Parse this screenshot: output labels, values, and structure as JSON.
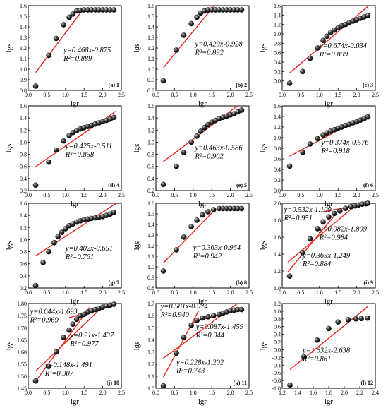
{
  "chart_data": [
    {
      "id": "a",
      "type": "scatter",
      "panel_label": "(a) 1",
      "xlabel": "lgr",
      "ylabel": "lgs",
      "xlim": [
        0,
        2.5
      ],
      "ylim": [
        0.8,
        1.6
      ],
      "xticks": [
        0.0,
        0.5,
        1.0,
        1.5,
        2.0,
        2.5
      ],
      "xtick_labels": [
        "0.0",
        "0.5",
        "1.0",
        "1.5",
        "2.0",
        "2.5"
      ],
      "yticks": [
        0.8,
        0.9,
        1.0,
        1.1,
        1.2,
        1.3,
        1.4,
        1.5,
        1.6
      ],
      "ytick_labels": [
        "0.8",
        "0.9",
        "1.0",
        "1.1",
        "1.2",
        "1.3",
        "1.4",
        "1.5",
        "1.6"
      ],
      "x": [
        0.2,
        0.55,
        0.75,
        0.95,
        1.1,
        1.2,
        1.3,
        1.4,
        1.5,
        1.6,
        1.7,
        1.8,
        1.9,
        2.0,
        2.1,
        2.2,
        2.3
      ],
      "y": [
        0.84,
        1.13,
        1.29,
        1.42,
        1.49,
        1.52,
        1.55,
        1.555,
        1.56,
        1.56,
        1.56,
        1.56,
        1.56,
        1.56,
        1.56,
        1.56,
        1.56
      ],
      "fits": [
        {
          "slope": 0.468,
          "intercept": -0.875,
          "xrange": [
            0.2,
            1.45
          ],
          "equation": "y=0.468x-0.875",
          "r2": "R²=0.889"
        }
      ]
    },
    {
      "id": "b",
      "type": "scatter",
      "panel_label": "(b) 2",
      "xlabel": "lgr",
      "ylabel": "lgs",
      "xlim": [
        0,
        2.5
      ],
      "ylim": [
        0.8,
        1.6
      ],
      "xticks": [
        0.0,
        0.5,
        1.0,
        1.5,
        2.0,
        2.5
      ],
      "xtick_labels": [
        "0.0",
        "0.5",
        "1.0",
        "1.5",
        "2.0",
        "2.5"
      ],
      "yticks": [
        0.8,
        0.9,
        1.0,
        1.1,
        1.2,
        1.3,
        1.4,
        1.5,
        1.6
      ],
      "ytick_labels": [
        "0.8",
        "0.9",
        "1.0",
        "1.1",
        "1.2",
        "1.3",
        "1.4",
        "1.5",
        "1.6"
      ],
      "x": [
        0.2,
        0.55,
        0.75,
        0.95,
        1.1,
        1.2,
        1.3,
        1.4,
        1.5,
        1.6,
        1.7,
        1.8,
        1.9,
        2.0,
        2.1,
        2.2,
        2.3
      ],
      "y": [
        0.89,
        1.18,
        1.32,
        1.43,
        1.49,
        1.53,
        1.55,
        1.56,
        1.56,
        1.56,
        1.56,
        1.56,
        1.56,
        1.56,
        1.56,
        1.56,
        1.56
      ],
      "fits": [
        {
          "slope": 0.429,
          "intercept": -0.928,
          "xrange": [
            0.2,
            1.55
          ],
          "equation": "y=0.429x-0.928",
          "r2": "R²=0.892"
        }
      ]
    },
    {
      "id": "c",
      "type": "scatter",
      "panel_label": "(c) 3",
      "xlabel": "lgr",
      "ylabel": "lgs",
      "xlim": [
        0,
        2.5
      ],
      "ylim": [
        -0.2,
        1.6
      ],
      "xticks": [
        0.0,
        0.5,
        1.0,
        1.5,
        2.0,
        2.5
      ],
      "xtick_labels": [
        "0.0",
        "0.5",
        "1.0",
        "1.5",
        "2.0",
        "2.5"
      ],
      "yticks": [
        0.0,
        0.2,
        0.4,
        0.6,
        0.8,
        1.0,
        1.2,
        1.4,
        1.6
      ],
      "ytick_labels": [
        "0.0",
        "0.2",
        "0.4",
        "0.6",
        "0.8",
        "1.0",
        "1.2",
        "1.4",
        "1.6"
      ],
      "x": [
        0.2,
        0.55,
        0.75,
        0.95,
        1.1,
        1.2,
        1.3,
        1.4,
        1.5,
        1.6,
        1.7,
        1.8,
        1.9,
        2.0,
        2.1,
        2.2,
        2.3
      ],
      "y": [
        -0.05,
        0.2,
        0.48,
        0.7,
        0.86,
        0.95,
        1.03,
        1.08,
        1.13,
        1.17,
        1.2,
        1.24,
        1.27,
        1.3,
        1.33,
        1.36,
        1.39
      ],
      "fits": [
        {
          "slope": 0.674,
          "intercept": -0.034,
          "xrange": [
            0.2,
            2.35
          ],
          "equation": "y=0.674x-0.034",
          "r2": "R²=0.899"
        }
      ]
    },
    {
      "id": "d",
      "type": "scatter",
      "panel_label": "(d) 4",
      "xlabel": "lgr",
      "ylabel": "lgs",
      "xlim": [
        0,
        2.5
      ],
      "ylim": [
        0.2,
        1.6
      ],
      "xticks": [
        0.0,
        0.5,
        1.0,
        1.5,
        2.0,
        2.5
      ],
      "xtick_labels": [
        "0.0",
        "0.5",
        "1.0",
        "1.5",
        "2.0",
        "2.5"
      ],
      "yticks": [
        0.2,
        0.4,
        0.6,
        0.8,
        1.0,
        1.2,
        1.4,
        1.6
      ],
      "ytick_labels": [
        "0.2",
        "0.4",
        "0.6",
        "0.8",
        "1.0",
        "1.2",
        "1.4",
        "1.6"
      ],
      "x": [
        0.2,
        0.55,
        0.75,
        0.95,
        1.1,
        1.2,
        1.3,
        1.4,
        1.5,
        1.6,
        1.7,
        1.8,
        1.9,
        2.0,
        2.1,
        2.2,
        2.3
      ],
      "y": [
        0.29,
        0.67,
        0.87,
        1.02,
        1.11,
        1.16,
        1.19,
        1.22,
        1.24,
        1.26,
        1.28,
        1.3,
        1.32,
        1.34,
        1.36,
        1.38,
        1.41
      ],
      "fits": [
        {
          "slope": 0.425,
          "intercept": -0.511,
          "xrange": [
            0.2,
            2.35
          ],
          "equation": "y=0.425x-0.511",
          "r2": "R²=0.858"
        }
      ]
    },
    {
      "id": "e",
      "type": "scatter",
      "panel_label": "(e) 5",
      "xlabel": "lgr",
      "ylabel": "lgs",
      "xlim": [
        0,
        2.5
      ],
      "ylim": [
        0.2,
        1.6
      ],
      "xticks": [
        0.0,
        0.5,
        1.0,
        1.5,
        2.0,
        2.5
      ],
      "xtick_labels": [
        "0.0",
        "0.5",
        "1.0",
        "1.5",
        "2.0",
        "2.5"
      ],
      "yticks": [
        0.2,
        0.4,
        0.6,
        0.8,
        1.0,
        1.2,
        1.4,
        1.6
      ],
      "ytick_labels": [
        "0.2",
        "0.4",
        "0.6",
        "0.8",
        "1.0",
        "1.2",
        "1.4",
        "1.6"
      ],
      "x": [
        0.2,
        0.55,
        0.75,
        0.95,
        1.1,
        1.2,
        1.3,
        1.4,
        1.5,
        1.6,
        1.7,
        1.8,
        1.9,
        2.0,
        2.1,
        2.2,
        2.3
      ],
      "y": [
        0.3,
        0.6,
        0.83,
        1.0,
        1.1,
        1.18,
        1.24,
        1.29,
        1.33,
        1.36,
        1.39,
        1.41,
        1.43,
        1.45,
        1.47,
        1.5,
        1.53
      ],
      "fits": [
        {
          "slope": 0.463,
          "intercept": -0.586,
          "xrange": [
            0.2,
            2.35
          ],
          "equation": "y=0.463x-0.586",
          "r2": "R²=0.902"
        }
      ]
    },
    {
      "id": "f",
      "type": "scatter",
      "panel_label": "(f) 6",
      "xlabel": "lgr",
      "ylabel": "lgs",
      "xlim": [
        0,
        2.5
      ],
      "ylim": [
        0.0,
        1.6
      ],
      "xticks": [
        0.0,
        0.5,
        1.0,
        1.5,
        2.0,
        2.5
      ],
      "xtick_labels": [
        "0.0",
        "0.5",
        "1.0",
        "1.5",
        "2.0",
        "2.5"
      ],
      "yticks": [
        0.0,
        0.2,
        0.4,
        0.6,
        0.8,
        1.0,
        1.2,
        1.4,
        1.6
      ],
      "ytick_labels": [
        "0.0",
        "0.2",
        "0.4",
        "0.6",
        "0.8",
        "1.0",
        "1.2",
        "1.4",
        "1.6"
      ],
      "x": [
        0.2,
        0.55,
        0.75,
        0.95,
        1.1,
        1.2,
        1.3,
        1.4,
        1.5,
        1.6,
        1.7,
        1.8,
        1.9,
        2.0,
        2.1,
        2.2,
        2.3
      ],
      "y": [
        0.46,
        0.72,
        0.88,
        0.98,
        1.05,
        1.09,
        1.12,
        1.15,
        1.18,
        1.2,
        1.23,
        1.25,
        1.28,
        1.3,
        1.33,
        1.36,
        1.39
      ],
      "fits": [
        {
          "slope": 0.374,
          "intercept": -0.576,
          "xrange": [
            0.2,
            2.35
          ],
          "equation": "y=0.374x-0.576",
          "r2": "R²=0.918"
        }
      ]
    },
    {
      "id": "g",
      "type": "scatter",
      "panel_label": "(g) 7",
      "xlabel": "lgr",
      "ylabel": "lgs",
      "xlim": [
        0,
        2.5
      ],
      "ylim": [
        0.2,
        1.6
      ],
      "xticks": [
        0.0,
        0.5,
        1.0,
        1.5,
        2.0,
        2.5
      ],
      "xtick_labels": [
        "0.0",
        "0.5",
        "1.0",
        "1.5",
        "2.0",
        "2.5"
      ],
      "yticks": [
        0.2,
        0.4,
        0.6,
        0.8,
        1.0,
        1.2,
        1.4,
        1.6
      ],
      "ytick_labels": [
        "0.2",
        "0.4",
        "0.6",
        "0.8",
        "1.0",
        "1.2",
        "1.4",
        "1.6"
      ],
      "x": [
        0.2,
        0.4,
        0.55,
        0.7,
        0.8,
        0.9,
        1.0,
        1.1,
        1.2,
        1.3,
        1.4,
        1.5,
        1.6,
        1.7,
        1.8,
        1.9,
        2.0,
        2.1,
        2.2,
        2.3
      ],
      "y": [
        0.24,
        0.62,
        0.8,
        0.95,
        1.05,
        1.12,
        1.18,
        1.23,
        1.26,
        1.29,
        1.31,
        1.33,
        1.34,
        1.35,
        1.36,
        1.37,
        1.38,
        1.4,
        1.42,
        1.45
      ],
      "fits": [
        {
          "slope": 0.402,
          "intercept": -0.651,
          "xrange": [
            0.2,
            2.35
          ],
          "equation": "y=0.402x-0.651",
          "r2": "R²=0.761"
        }
      ]
    },
    {
      "id": "h",
      "type": "scatter",
      "panel_label": "(h) 8",
      "xlabel": "lgr",
      "ylabel": "lgs",
      "xlim": [
        0,
        2.5
      ],
      "ylim": [
        0.8,
        1.6
      ],
      "xticks": [
        0.0,
        0.5,
        1.0,
        1.5,
        2.0,
        2.5
      ],
      "xtick_labels": [
        "0.0",
        "0.5",
        "1.0",
        "1.5",
        "2.0",
        "2.5"
      ],
      "yticks": [
        0.8,
        0.9,
        1.0,
        1.1,
        1.2,
        1.3,
        1.4,
        1.5,
        1.6
      ],
      "ytick_labels": [
        "0.8",
        "0.9",
        "1.0",
        "1.1",
        "1.2",
        "1.3",
        "1.4",
        "1.5",
        "1.6"
      ],
      "x": [
        0.2,
        0.55,
        0.75,
        0.95,
        1.1,
        1.25,
        1.4,
        1.55,
        1.7,
        1.8,
        1.9,
        2.0,
        2.1,
        2.2,
        2.3
      ],
      "y": [
        0.96,
        1.16,
        1.28,
        1.38,
        1.44,
        1.49,
        1.52,
        1.54,
        1.55,
        1.55,
        1.55,
        1.55,
        1.55,
        1.55,
        1.55
      ],
      "fits": [
        {
          "slope": 0.363,
          "intercept": -0.964,
          "xrange": [
            0.2,
            1.6
          ],
          "equation": "y=0.363x-0.964",
          "r2": "R²=0.942"
        }
      ]
    },
    {
      "id": "i",
      "type": "scatter",
      "panel_label": "(i) 9",
      "xlabel": "lgr",
      "ylabel": "lgs",
      "xlim": [
        0,
        2.5
      ],
      "ylim": [
        1.0,
        2.0
      ],
      "xticks": [
        0.0,
        0.5,
        1.0,
        1.5,
        2.0,
        2.5
      ],
      "xtick_labels": [
        "0.0",
        "0.5",
        "1.0",
        "1.5",
        "2.0",
        "2.5"
      ],
      "yticks": [
        1.0,
        1.2,
        1.4,
        1.6,
        1.8,
        2.0
      ],
      "ytick_labels": [
        "1.0",
        "1.2",
        "1.4",
        "1.6",
        "1.8",
        "2.0"
      ],
      "x": [
        0.2,
        0.55,
        0.75,
        0.95,
        1.1,
        1.25,
        1.4,
        1.55,
        1.7,
        1.85,
        1.95,
        2.05,
        2.15,
        2.25,
        2.3
      ],
      "y": [
        1.14,
        1.42,
        1.58,
        1.7,
        1.78,
        1.84,
        1.88,
        1.91,
        1.94,
        1.96,
        1.97,
        1.98,
        1.99,
        1.995,
        2.0
      ],
      "fits": [
        {
          "slope": 0.532,
          "intercept": -1.109,
          "xrange": [
            0.15,
            1.5
          ],
          "equation": "y=0.532x-1.109",
          "r2": "R²=0.951"
        },
        {
          "slope": 0.082,
          "intercept": -1.809,
          "xrange": [
            1.1,
            2.35
          ],
          "equation": "y=0.082x-1.809",
          "r2": "R²=0.984"
        },
        {
          "slope": 0.369,
          "intercept": -1.249,
          "xrange": [
            0.15,
            2.35
          ],
          "equation": "y=0.369x-1.249",
          "r2": "R²=0.884"
        }
      ]
    },
    {
      "id": "j",
      "type": "scatter",
      "panel_label": "(j) 10",
      "xlabel": "lgr",
      "ylabel": "lgs",
      "xlim": [
        0,
        2.5
      ],
      "ylim": [
        1.45,
        1.8
      ],
      "xticks": [
        0.0,
        0.5,
        1.0,
        1.5,
        2.0,
        2.5
      ],
      "xtick_labels": [
        "0.0",
        "0.5",
        "1.0",
        "1.5",
        "2.0",
        "2.5"
      ],
      "yticks": [
        1.45,
        1.5,
        1.55,
        1.6,
        1.65,
        1.7,
        1.75,
        1.8
      ],
      "ytick_labels": [
        "1.45",
        "1.50",
        "1.55",
        "1.60",
        "1.65",
        "1.70",
        "1.75",
        "1.80"
      ],
      "x": [
        0.2,
        0.55,
        0.75,
        0.95,
        1.1,
        1.2,
        1.3,
        1.4,
        1.5,
        1.6,
        1.7,
        1.8,
        1.9,
        2.0,
        2.1,
        2.2,
        2.3
      ],
      "y": [
        1.48,
        1.54,
        1.6,
        1.66,
        1.69,
        1.715,
        1.735,
        1.75,
        1.755,
        1.765,
        1.77,
        1.775,
        1.78,
        1.785,
        1.79,
        1.793,
        1.797
      ],
      "fits": [
        {
          "slope": 0.044,
          "intercept": -1.693,
          "xrange": [
            1.1,
            2.35
          ],
          "equation": "y=0.044x-1.693",
          "r2": "R²=0.969"
        },
        {
          "slope": 0.21,
          "intercept": -1.437,
          "xrange": [
            0.2,
            1.65
          ],
          "equation": "y=0.21x-1.437",
          "r2": "R²=0.977"
        },
        {
          "slope": 0.148,
          "intercept": -1.491,
          "xrange": [
            0.2,
            2.35
          ],
          "equation": "y=0.148x-1.491",
          "r2": "R²=0.907"
        }
      ]
    },
    {
      "id": "k",
      "type": "scatter",
      "panel_label": "(k) 11",
      "xlabel": "lgr",
      "ylabel": "lgs",
      "xlim": [
        0,
        2.5
      ],
      "ylim": [
        1.0,
        1.7
      ],
      "xticks": [
        0.0,
        0.5,
        1.0,
        1.5,
        2.0,
        2.5
      ],
      "xtick_labels": [
        "0.0",
        "0.5",
        "1.0",
        "1.5",
        "2.0",
        "2.5"
      ],
      "yticks": [
        1.0,
        1.1,
        1.2,
        1.3,
        1.4,
        1.5,
        1.6,
        1.7
      ],
      "ytick_labels": [
        "1.0",
        "1.1",
        "1.2",
        "1.3",
        "1.4",
        "1.5",
        "1.6",
        "1.7"
      ],
      "x": [
        0.2,
        0.55,
        0.75,
        0.95,
        1.1,
        1.25,
        1.4,
        1.55,
        1.7,
        1.8,
        1.9,
        2.0,
        2.1,
        2.2,
        2.3
      ],
      "y": [
        1.02,
        1.29,
        1.42,
        1.52,
        1.56,
        1.58,
        1.59,
        1.6,
        1.61,
        1.62,
        1.63,
        1.64,
        1.645,
        1.65,
        1.65
      ],
      "fits": [
        {
          "slope": 0.581,
          "intercept": -0.974,
          "xrange": [
            0.2,
            1.15
          ],
          "equation": "y=0.581x-0.974",
          "r2": "R²=0.940"
        },
        {
          "slope": 0.087,
          "intercept": -1.459,
          "xrange": [
            1.0,
            2.35
          ],
          "equation": "y=0.087x-1.459",
          "r2": "R²=0.944"
        },
        {
          "slope": 0.228,
          "intercept": -1.202,
          "xrange": [
            0.2,
            2.35
          ],
          "equation": "y=0.228x-1.202",
          "r2": "R²=0.743"
        }
      ]
    },
    {
      "id": "l",
      "type": "scatter",
      "panel_label": "(l) 12",
      "xlabel": "lgr",
      "ylabel": "lgs",
      "xlim": [
        1.2,
        2.4
      ],
      "ylim": [
        -1.0,
        1.2
      ],
      "xticks": [
        1.2,
        1.4,
        1.6,
        1.8,
        2.0,
        2.2,
        2.4
      ],
      "xtick_labels": [
        "1.2",
        "1.4",
        "1.6",
        "1.8",
        "2.0",
        "2.2",
        "2.4"
      ],
      "yticks": [
        -1.0,
        -0.8,
        -0.6,
        -0.4,
        -0.2,
        0.0,
        0.2,
        0.4,
        0.6,
        0.8,
        1.0,
        1.2
      ],
      "ytick_labels": [
        "-1.0",
        "-0.8",
        "-0.6",
        "-0.4",
        "-0.2",
        "0.0",
        "0.2",
        "0.4",
        "0.6",
        "0.8",
        "1.0",
        "1.2"
      ],
      "x": [
        1.3,
        1.48,
        1.65,
        1.8,
        1.92,
        2.05,
        2.15,
        2.22,
        2.3
      ],
      "y": [
        -0.92,
        -0.18,
        0.25,
        0.55,
        0.72,
        0.78,
        0.8,
        0.81,
        0.82
      ],
      "fits": [
        {
          "slope": 1.632,
          "intercept": -2.638,
          "xrange": [
            1.3,
            2.3
          ],
          "equation": "y=1.632x-2.638",
          "r2": "R²=0.861"
        }
      ]
    }
  ],
  "colors": {
    "fit_line": "#e8281c",
    "marker_dark": "#000000",
    "marker_light": "#d0d0d0",
    "axis": "#000000"
  }
}
